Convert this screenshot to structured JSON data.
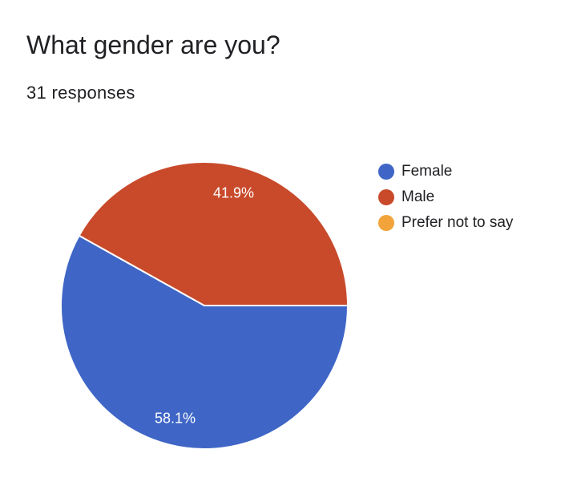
{
  "question": {
    "title": "What gender are you?",
    "responses_label": "31 responses"
  },
  "chart_data": {
    "type": "pie",
    "slices": [
      {
        "label": "Female",
        "value": 58.1,
        "display": "58.1%",
        "color": "#3f66c6"
      },
      {
        "label": "Male",
        "value": 41.9,
        "display": "41.9%",
        "color": "#c84a2b"
      },
      {
        "label": "Prefer not to say",
        "value": 0,
        "display": "",
        "color": "#f2a43a"
      }
    ],
    "legend_position": "right"
  }
}
